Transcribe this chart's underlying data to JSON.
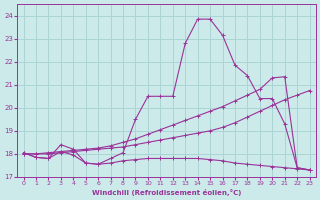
{
  "xlabel": "Windchill (Refroidissement éolien,°C)",
  "bg_color": "#cceaea",
  "grid_color": "#aad4d4",
  "line_color": "#993399",
  "xlim": [
    -0.5,
    23.5
  ],
  "ylim": [
    17.0,
    24.5
  ],
  "yticks": [
    17,
    18,
    19,
    20,
    21,
    22,
    23,
    24
  ],
  "xticks": [
    0,
    1,
    2,
    3,
    4,
    5,
    6,
    7,
    8,
    9,
    10,
    11,
    12,
    13,
    14,
    15,
    16,
    17,
    18,
    19,
    20,
    21,
    22,
    23
  ],
  "series": [
    {
      "x": [
        0,
        1,
        2,
        3,
        4,
        5,
        6,
        7,
        8,
        9,
        10,
        11,
        12,
        13,
        14,
        15,
        16,
        17,
        18,
        19,
        20,
        21,
        22,
        23
      ],
      "y": [
        18.05,
        17.85,
        17.8,
        18.4,
        18.2,
        17.6,
        17.55,
        17.8,
        18.05,
        19.5,
        20.5,
        20.5,
        20.5,
        22.8,
        23.85,
        23.85,
        23.15,
        21.85,
        21.4,
        20.4,
        20.4,
        19.3,
        17.4,
        17.3
      ]
    },
    {
      "x": [
        0,
        1,
        2,
        3,
        4,
        5,
        6,
        7,
        8,
        9,
        10,
        11,
        12,
        13,
        14,
        15,
        16,
        17,
        18,
        19,
        20,
        21,
        22,
        23
      ],
      "y": [
        18.05,
        17.85,
        17.8,
        18.1,
        17.95,
        17.6,
        17.55,
        17.6,
        17.7,
        17.75,
        17.8,
        17.8,
        17.8,
        17.8,
        17.8,
        17.75,
        17.7,
        17.6,
        17.55,
        17.5,
        17.45,
        17.4,
        17.35,
        17.3
      ]
    },
    {
      "x": [
        0,
        1,
        2,
        3,
        4,
        5,
        6,
        7,
        8,
        9,
        10,
        11,
        12,
        13,
        14,
        15,
        16,
        17,
        18,
        19,
        20,
        21,
        22,
        23
      ],
      "y": [
        18.0,
        18.0,
        18.05,
        18.1,
        18.15,
        18.2,
        18.25,
        18.35,
        18.5,
        18.65,
        18.85,
        19.05,
        19.25,
        19.45,
        19.65,
        19.85,
        20.05,
        20.3,
        20.55,
        20.8,
        21.3,
        21.35,
        17.4,
        17.3
      ]
    },
    {
      "x": [
        0,
        1,
        2,
        3,
        4,
        5,
        6,
        7,
        8,
        9,
        10,
        11,
        12,
        13,
        14,
        15,
        16,
        17,
        18,
        19,
        20,
        21,
        22,
        23
      ],
      "y": [
        18.0,
        18.0,
        18.0,
        18.05,
        18.1,
        18.15,
        18.2,
        18.25,
        18.3,
        18.4,
        18.5,
        18.6,
        18.7,
        18.8,
        18.9,
        19.0,
        19.15,
        19.35,
        19.6,
        19.85,
        20.1,
        20.35,
        20.55,
        20.75
      ]
    }
  ]
}
